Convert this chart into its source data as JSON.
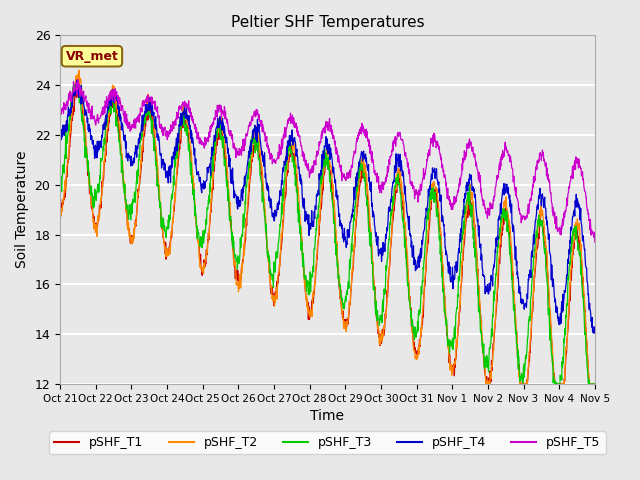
{
  "title": "Peltier SHF Temperatures",
  "xlabel": "Time",
  "ylabel": "Soil Temperature",
  "ylim": [
    12,
    26
  ],
  "xlim": [
    0,
    360
  ],
  "xtick_positions": [
    0,
    24,
    48,
    72,
    96,
    120,
    144,
    168,
    192,
    216,
    240,
    264,
    288,
    312,
    336,
    360
  ],
  "xtick_labels": [
    "Oct 21",
    "Oct 22",
    "Oct 23",
    "Oct 24",
    "Oct 25",
    "Oct 26",
    "Oct 27",
    "Oct 28",
    "Oct 29",
    "Oct 30",
    "Oct 31",
    "Nov 1",
    "Nov 2",
    "Nov 3",
    "Nov 4",
    "Nov 5"
  ],
  "ytick_positions": [
    12,
    14,
    16,
    18,
    20,
    22,
    24,
    26
  ],
  "line_colors": {
    "pSHF_T1": "#cc0000",
    "pSHF_T2": "#ff8800",
    "pSHF_T3": "#00cc00",
    "pSHF_T4": "#0000cc",
    "pSHF_T5": "#cc00cc"
  },
  "legend_label": "VR_met",
  "plot_bg_color": "#e8e8e8",
  "grid_color": "#ffffff",
  "annotation_box_facecolor": "#ffff99",
  "annotation_box_edgecolor": "#8b6914",
  "annotation_text_color": "#8b0000"
}
